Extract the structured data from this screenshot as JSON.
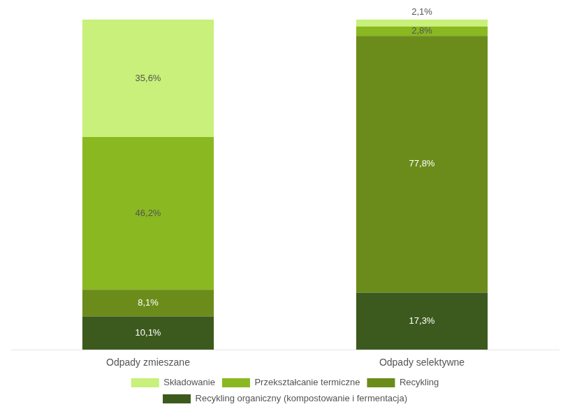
{
  "chart_data": {
    "type": "bar",
    "stacked": true,
    "categories": [
      "Odpady zmieszane",
      "Odpady selektywne"
    ],
    "series": [
      {
        "name": "Recykling organiczny (kompostowanie i fermentacja)",
        "color": "#3d5a1e",
        "values": [
          10.1,
          17.3
        ],
        "value_labels": [
          "10,1%",
          "17,3%"
        ]
      },
      {
        "name": "Recykling",
        "color": "#6b8c1a",
        "values": [
          8.1,
          77.8
        ],
        "value_labels": [
          "8,1%",
          "77,8%"
        ]
      },
      {
        "name": "Przekształcanie termiczne",
        "color": "#8ab820",
        "values": [
          46.2,
          2.8
        ],
        "value_labels": [
          "46,2%",
          "2,8%"
        ]
      },
      {
        "name": "Składowanie",
        "color": "#c8f07a",
        "values": [
          35.6,
          2.1
        ],
        "value_labels": [
          "35,6%",
          "2,1%"
        ]
      }
    ],
    "ylim": [
      0,
      100
    ],
    "tick_labels": "x",
    "grid": false,
    "legend": "bottom",
    "data_labels": true
  }
}
